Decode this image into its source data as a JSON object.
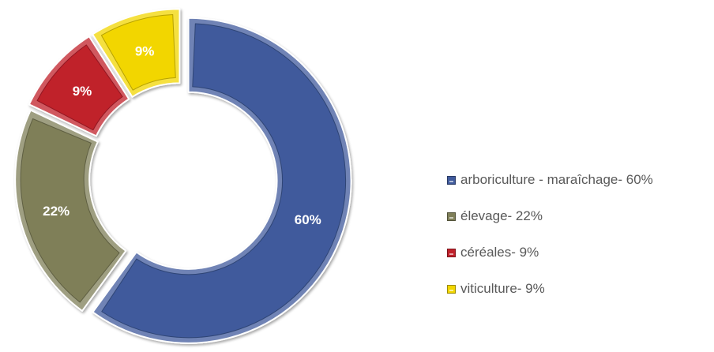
{
  "chart_data": {
    "type": "pie",
    "variant": "donut",
    "title": "",
    "categories": [
      "arboriculture - maraîchage",
      "élevage",
      "céréales",
      "viticulture"
    ],
    "values": [
      60,
      22,
      9,
      9
    ],
    "data_labels": [
      "60%",
      "22%",
      "9%",
      "9%"
    ],
    "colors": [
      "#3f5a9c",
      "#7f7f58",
      "#c0202a",
      "#f2d600"
    ],
    "legend_position": "right",
    "legend": [
      "arboriculture - maraîchage- 60%",
      "élevage- 22%",
      "céréales- 9%",
      "viticulture- 9%"
    ]
  }
}
